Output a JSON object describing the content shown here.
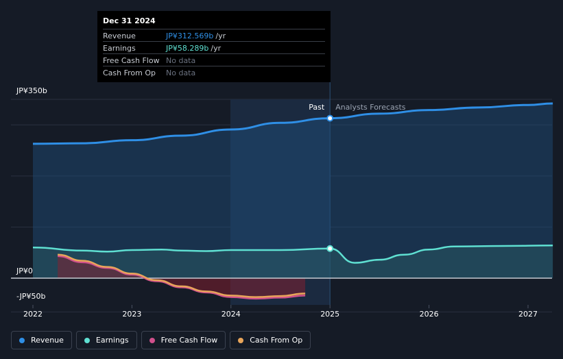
{
  "chart_data": {
    "type": "line",
    "x_ticks": [
      "2022",
      "2023",
      "2024",
      "2025",
      "2026",
      "2027"
    ],
    "y_ticks": [
      "JP¥350b",
      "JP¥0",
      "-JP¥50b"
    ],
    "ylim": [
      -50,
      350
    ],
    "divider_labels": {
      "past": "Past",
      "forecast": "Analysts Forecasts"
    },
    "series": [
      {
        "name": "Revenue",
        "color": "#2f8fe6",
        "x": [
          2022.0,
          2022.5,
          2023.0,
          2023.5,
          2024.0,
          2024.5,
          2025.0,
          2025.5,
          2026.0,
          2026.5,
          2027.0,
          2027.25
        ],
        "values": [
          263,
          264,
          270,
          279,
          291,
          304,
          313,
          322,
          329,
          334,
          339,
          342
        ]
      },
      {
        "name": "Earnings",
        "color": "#5fe0d2",
        "x": [
          2022.0,
          2022.5,
          2022.75,
          2023.0,
          2023.3,
          2023.5,
          2023.75,
          2024.0,
          2024.5,
          2025.0,
          2025.25,
          2025.5,
          2025.75,
          2026.0,
          2026.25,
          2026.75,
          2027.25
        ],
        "values": [
          60,
          54,
          52,
          55,
          56,
          54,
          53,
          55,
          55,
          58,
          30,
          36,
          46,
          56,
          62,
          63,
          64
        ]
      },
      {
        "name": "Free Cash Flow",
        "color": "#d0508c",
        "x": [
          2022.25,
          2022.5,
          2022.75,
          2023.0,
          2023.25,
          2023.5,
          2023.75,
          2024.0,
          2024.25,
          2024.5,
          2024.75
        ],
        "values": [
          43,
          31,
          20,
          7,
          -6,
          -18,
          -28,
          -37,
          -40,
          -38,
          -34
        ]
      },
      {
        "name": "Cash From Op",
        "color": "#e8a55a",
        "x": [
          2022.25,
          2022.5,
          2022.75,
          2023.0,
          2023.25,
          2023.5,
          2023.75,
          2024.0,
          2024.25,
          2024.5,
          2024.75
        ],
        "values": [
          46,
          34,
          22,
          9,
          -4,
          -16,
          -26,
          -34,
          -37,
          -35,
          -30
        ]
      }
    ],
    "highlight_x": 2025.0
  },
  "tooltip": {
    "date": "Dec 31 2024",
    "rows": [
      {
        "name": "Revenue",
        "value": "JP¥312.569b",
        "unit": "/yr",
        "color": "#2f8fe6"
      },
      {
        "name": "Earnings",
        "value": "JP¥58.289b",
        "unit": "/yr",
        "color": "#5fe0d2"
      },
      {
        "name": "Free Cash Flow",
        "value": "No data"
      },
      {
        "name": "Cash From Op",
        "value": "No data"
      }
    ]
  },
  "legend": [
    {
      "label": "Revenue",
      "color": "#2f8fe6"
    },
    {
      "label": "Earnings",
      "color": "#5fe0d2"
    },
    {
      "label": "Free Cash Flow",
      "color": "#d0508c"
    },
    {
      "label": "Cash From Op",
      "color": "#e8a55a"
    }
  ]
}
